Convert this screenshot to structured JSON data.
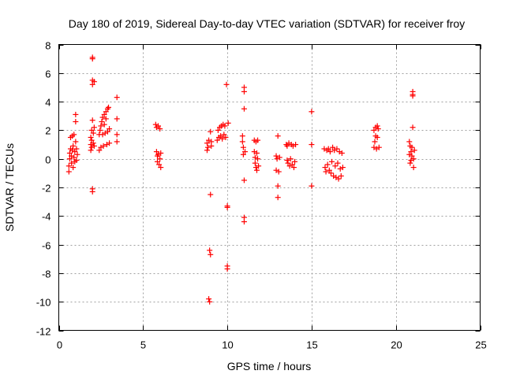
{
  "chart_data": {
    "type": "scatter",
    "title": "Day 180 of 2019, Sidereal Day-to-day VTEC variation (SDTVAR) for receiver froy",
    "xlabel": "GPS time / hours",
    "ylabel": "SDTVAR / TECUs",
    "xlim": [
      0,
      25
    ],
    "ylim": [
      -12,
      8
    ],
    "xticks": [
      0,
      5,
      10,
      15,
      20,
      25
    ],
    "yticks": [
      -12,
      -10,
      -8,
      -6,
      -4,
      -2,
      0,
      2,
      4,
      6,
      8
    ],
    "xtick_labels": [
      "0",
      "5",
      "10",
      "15",
      "20",
      "25"
    ],
    "ytick_labels": [
      "-12",
      "-10",
      "-8",
      "-6",
      "-4",
      "-2",
      "0",
      "2",
      "4",
      "6",
      "8"
    ],
    "grid": true,
    "marker": "+",
    "color": "#ff0000",
    "series": [
      {
        "name": "SDTVAR",
        "points": [
          [
            0.6,
            -0.9
          ],
          [
            0.6,
            -0.5
          ],
          [
            0.65,
            0.0
          ],
          [
            0.65,
            0.4
          ],
          [
            0.7,
            0.7
          ],
          [
            0.7,
            1.5
          ],
          [
            0.75,
            -0.3
          ],
          [
            0.75,
            0.2
          ],
          [
            0.8,
            0.6
          ],
          [
            0.8,
            1.6
          ],
          [
            0.85,
            -0.6
          ],
          [
            0.85,
            0.9
          ],
          [
            0.9,
            0.1
          ],
          [
            0.9,
            1.7
          ],
          [
            0.95,
            -0.2
          ],
          [
            0.95,
            0.5
          ],
          [
            1.0,
            1.2
          ],
          [
            1.0,
            2.6
          ],
          [
            1.0,
            3.1
          ],
          [
            1.05,
            -0.1
          ],
          [
            1.05,
            0.7
          ],
          [
            1.1,
            0.3
          ],
          [
            1.9,
            0.6
          ],
          [
            1.9,
            1.0
          ],
          [
            1.9,
            1.5
          ],
          [
            1.95,
            0.8
          ],
          [
            1.95,
            1.3
          ],
          [
            1.95,
            2.0
          ],
          [
            2.0,
            7.1
          ],
          [
            2.0,
            7.0
          ],
          [
            2.0,
            5.5
          ],
          [
            2.0,
            5.2
          ],
          [
            2.0,
            2.7
          ],
          [
            2.0,
            -2.1
          ],
          [
            2.0,
            -2.3
          ],
          [
            2.05,
            1.1
          ],
          [
            2.05,
            1.8
          ],
          [
            2.1,
            5.4
          ],
          [
            2.1,
            0.9
          ],
          [
            2.1,
            2.2
          ],
          [
            2.4,
            0.6
          ],
          [
            2.4,
            1.7
          ],
          [
            2.45,
            2.0
          ],
          [
            2.5,
            2.3
          ],
          [
            2.5,
            0.8
          ],
          [
            2.55,
            2.6
          ],
          [
            2.6,
            1.7
          ],
          [
            2.6,
            2.9
          ],
          [
            2.65,
            0.9
          ],
          [
            2.7,
            2.4
          ],
          [
            2.7,
            3.1
          ],
          [
            2.75,
            1.8
          ],
          [
            2.8,
            2.8
          ],
          [
            2.8,
            3.3
          ],
          [
            2.85,
            1.0
          ],
          [
            2.9,
            1.9
          ],
          [
            2.9,
            3.5
          ],
          [
            2.95,
            3.6
          ],
          [
            3.0,
            2.1
          ],
          [
            3.0,
            1.1
          ],
          [
            3.45,
            4.3
          ],
          [
            3.45,
            2.8
          ],
          [
            3.45,
            1.7
          ],
          [
            3.45,
            1.2
          ],
          [
            5.75,
            2.4
          ],
          [
            5.8,
            2.2
          ],
          [
            5.8,
            0.5
          ],
          [
            5.85,
            0.2
          ],
          [
            5.85,
            -0.2
          ],
          [
            5.9,
            2.3
          ],
          [
            5.9,
            0.3
          ],
          [
            5.95,
            -0.4
          ],
          [
            6.0,
            2.1
          ],
          [
            6.0,
            0.0
          ],
          [
            6.05,
            -0.6
          ],
          [
            6.05,
            0.4
          ],
          [
            8.8,
            0.6
          ],
          [
            8.8,
            1.1
          ],
          [
            8.85,
            0.8
          ],
          [
            8.9,
            1.3
          ],
          [
            8.9,
            -9.8
          ],
          [
            8.95,
            -10.0
          ],
          [
            8.95,
            -6.4
          ],
          [
            9.0,
            -6.7
          ],
          [
            9.0,
            -2.5
          ],
          [
            9.0,
            1.9
          ],
          [
            9.05,
            1.2
          ],
          [
            9.05,
            0.9
          ],
          [
            9.4,
            1.3
          ],
          [
            9.45,
            2.0
          ],
          [
            9.5,
            1.5
          ],
          [
            9.55,
            2.2
          ],
          [
            9.6,
            1.6
          ],
          [
            9.65,
            2.3
          ],
          [
            9.7,
            1.4
          ],
          [
            9.75,
            2.4
          ],
          [
            9.8,
            1.7
          ],
          [
            9.85,
            2.3
          ],
          [
            9.9,
            1.5
          ],
          [
            9.95,
            5.2
          ],
          [
            10.0,
            -3.3
          ],
          [
            10.0,
            -3.4
          ],
          [
            10.0,
            -7.5
          ],
          [
            10.0,
            -7.7
          ],
          [
            10.05,
            2.5
          ],
          [
            10.9,
            1.6
          ],
          [
            10.9,
            1.2
          ],
          [
            10.95,
            0.8
          ],
          [
            10.95,
            0.3
          ],
          [
            11.0,
            5.0
          ],
          [
            11.0,
            4.7
          ],
          [
            11.0,
            3.5
          ],
          [
            11.0,
            -1.5
          ],
          [
            11.0,
            -4.1
          ],
          [
            11.0,
            -4.4
          ],
          [
            11.05,
            0.5
          ],
          [
            11.6,
            1.3
          ],
          [
            11.6,
            0.5
          ],
          [
            11.65,
            0.1
          ],
          [
            11.65,
            -0.3
          ],
          [
            11.7,
            1.2
          ],
          [
            11.7,
            -0.6
          ],
          [
            11.75,
            0.4
          ],
          [
            11.75,
            -0.8
          ],
          [
            11.8,
            0.0
          ],
          [
            11.8,
            1.3
          ],
          [
            11.85,
            -0.5
          ],
          [
            12.9,
            0.2
          ],
          [
            12.9,
            -0.8
          ],
          [
            12.95,
            0.0
          ],
          [
            13.0,
            1.6
          ],
          [
            13.0,
            -1.9
          ],
          [
            13.0,
            -2.7
          ],
          [
            13.05,
            -0.9
          ],
          [
            13.1,
            0.1
          ],
          [
            13.5,
            1.0
          ],
          [
            13.55,
            0.9
          ],
          [
            13.55,
            -0.1
          ],
          [
            13.6,
            -0.3
          ],
          [
            13.65,
            1.1
          ],
          [
            13.7,
            -0.5
          ],
          [
            13.75,
            0.0
          ],
          [
            13.8,
            1.0
          ],
          [
            13.85,
            -0.4
          ],
          [
            13.9,
            0.9
          ],
          [
            13.95,
            -0.6
          ],
          [
            14.0,
            -0.2
          ],
          [
            14.05,
            1.0
          ],
          [
            15.0,
            3.3
          ],
          [
            15.0,
            1.0
          ],
          [
            15.0,
            -1.9
          ],
          [
            15.75,
            0.7
          ],
          [
            15.8,
            -0.6
          ],
          [
            15.85,
            -0.9
          ],
          [
            15.9,
            0.6
          ],
          [
            15.95,
            -0.4
          ],
          [
            16.0,
            0.7
          ],
          [
            16.05,
            -0.8
          ],
          [
            16.1,
            0.5
          ],
          [
            16.15,
            -1.0
          ],
          [
            16.2,
            -0.2
          ],
          [
            16.25,
            0.8
          ],
          [
            16.3,
            -1.2
          ],
          [
            16.35,
            0.6
          ],
          [
            16.4,
            -0.5
          ],
          [
            16.45,
            -1.3
          ],
          [
            16.5,
            0.7
          ],
          [
            16.55,
            -0.3
          ],
          [
            16.6,
            -1.4
          ],
          [
            16.65,
            0.5
          ],
          [
            16.7,
            -0.7
          ],
          [
            16.75,
            -1.2
          ],
          [
            16.8,
            0.4
          ],
          [
            16.85,
            -0.6
          ],
          [
            18.7,
            2.0
          ],
          [
            18.7,
            0.8
          ],
          [
            18.75,
            1.2
          ],
          [
            18.8,
            2.2
          ],
          [
            18.8,
            1.6
          ],
          [
            18.85,
            0.7
          ],
          [
            18.9,
            2.3
          ],
          [
            18.9,
            1.5
          ],
          [
            18.95,
            2.1
          ],
          [
            19.0,
            0.8
          ],
          [
            20.8,
            1.2
          ],
          [
            20.8,
            0.3
          ],
          [
            20.85,
            0.9
          ],
          [
            20.85,
            -0.3
          ],
          [
            20.9,
            0.5
          ],
          [
            20.9,
            -0.1
          ],
          [
            20.95,
            0.8
          ],
          [
            20.95,
            0.2
          ],
          [
            21.0,
            4.7
          ],
          [
            21.0,
            4.5
          ],
          [
            21.0,
            4.4
          ],
          [
            21.0,
            2.2
          ],
          [
            21.05,
            -0.6
          ],
          [
            21.05,
            0.0
          ],
          [
            21.1,
            0.6
          ]
        ]
      }
    ]
  }
}
